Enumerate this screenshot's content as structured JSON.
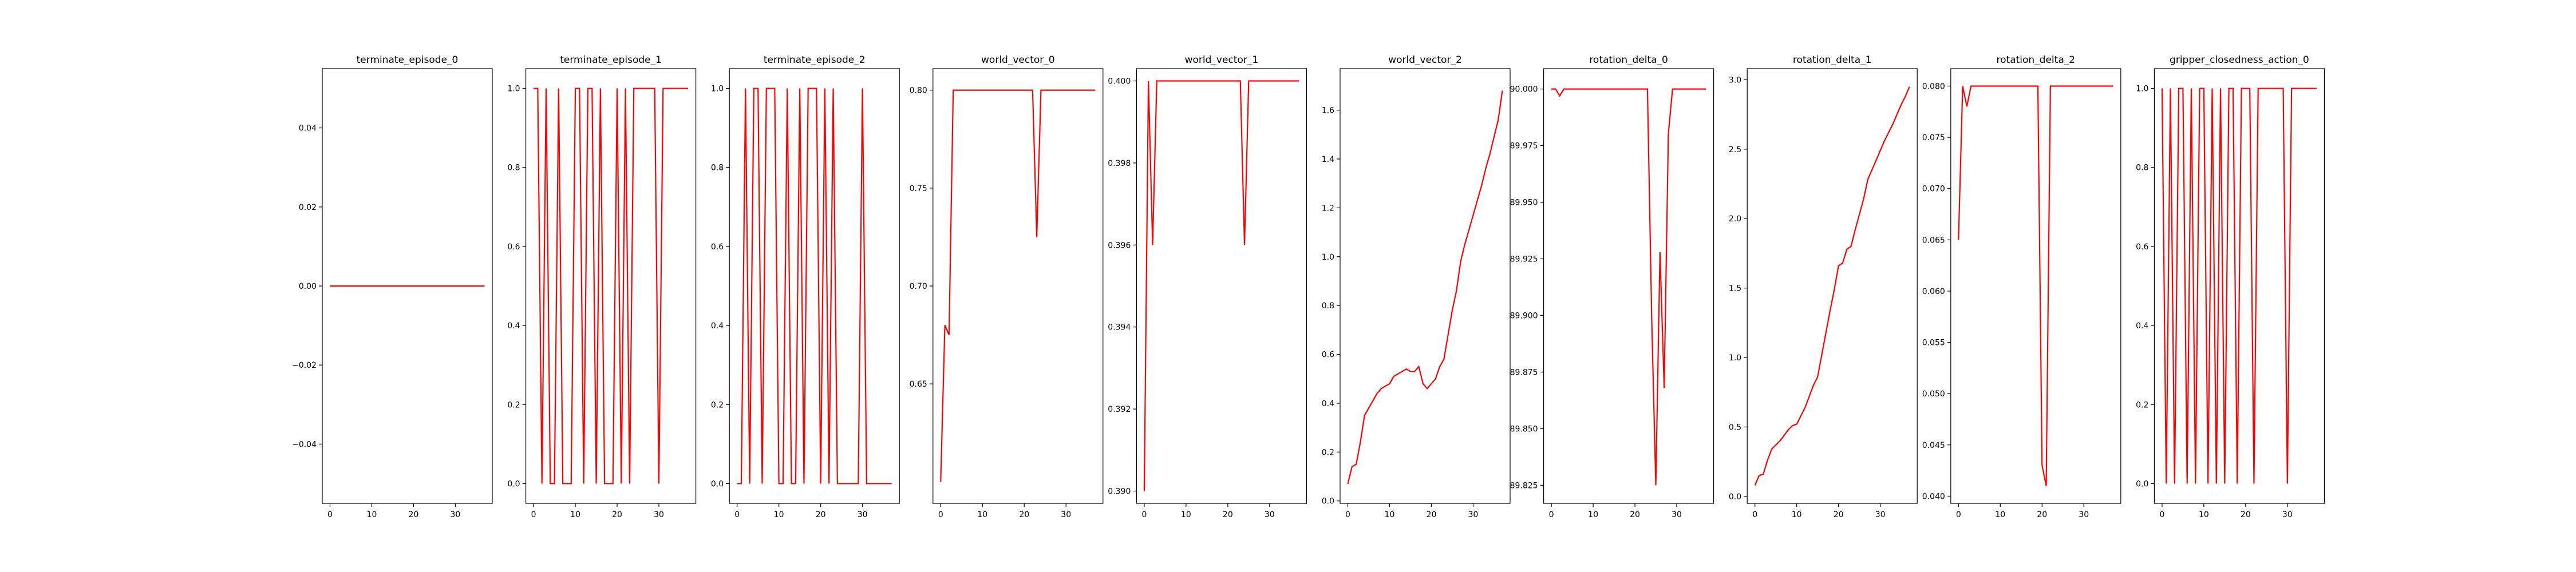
{
  "figure": {
    "line_color": "#ff0000",
    "axes_color": "#000000",
    "background": "#ffffff"
  },
  "chart_data": [
    {
      "type": "line",
      "title": "terminate_episode_0",
      "xlim": [
        -1.85,
        38.85
      ],
      "ylim": [
        -0.055,
        0.055
      ],
      "xticks": [
        0,
        10,
        20,
        30
      ],
      "yticks": [
        -0.04,
        -0.02,
        0.0,
        0.02,
        0.04
      ],
      "ytick_labels": [
        "−0.04",
        "−0.02",
        "0.00",
        "0.02",
        "0.04"
      ],
      "grid": false,
      "x": [
        0,
        37
      ],
      "y": [
        0,
        0
      ]
    },
    {
      "type": "line",
      "title": "terminate_episode_1",
      "xlim": [
        -1.85,
        38.85
      ],
      "ylim": [
        -0.05,
        1.05
      ],
      "xticks": [
        0,
        10,
        20,
        30
      ],
      "yticks": [
        0.0,
        0.2,
        0.4,
        0.6,
        0.8,
        1.0
      ],
      "ytick_labels": [
        "0.0",
        "0.2",
        "0.4",
        "0.6",
        "0.8",
        "1.0"
      ],
      "grid": false,
      "x": [
        0,
        1,
        2,
        3,
        4,
        5,
        6,
        7,
        8,
        9,
        10,
        11,
        12,
        13,
        14,
        15,
        16,
        17,
        18,
        19,
        20,
        21,
        22,
        23,
        24,
        25,
        26,
        27,
        28,
        29,
        30,
        31,
        32,
        33,
        34,
        35,
        36,
        37
      ],
      "y": [
        1,
        1,
        0,
        1,
        0,
        0,
        1,
        0,
        0,
        0,
        1,
        1,
        0,
        1,
        1,
        0,
        1,
        0,
        0,
        0,
        1,
        0,
        1,
        0,
        1,
        1,
        1,
        1,
        1,
        1,
        0,
        1,
        1,
        1,
        1,
        1,
        1,
        1
      ]
    },
    {
      "type": "line",
      "title": "terminate_episode_2",
      "xlim": [
        -1.85,
        38.85
      ],
      "ylim": [
        -0.05,
        1.05
      ],
      "xticks": [
        0,
        10,
        20,
        30
      ],
      "yticks": [
        0.0,
        0.2,
        0.4,
        0.6,
        0.8,
        1.0
      ],
      "ytick_labels": [
        "0.0",
        "0.2",
        "0.4",
        "0.6",
        "0.8",
        "1.0"
      ],
      "grid": false,
      "x": [
        0,
        1,
        2,
        3,
        4,
        5,
        6,
        7,
        8,
        9,
        10,
        11,
        12,
        13,
        14,
        15,
        16,
        17,
        18,
        19,
        20,
        21,
        22,
        23,
        24,
        25,
        26,
        27,
        28,
        29,
        30,
        31,
        32,
        33,
        34,
        35,
        36,
        37
      ],
      "y": [
        0,
        0,
        1,
        0,
        1,
        1,
        0,
        1,
        1,
        1,
        0,
        0,
        1,
        0,
        0,
        1,
        0,
        1,
        1,
        1,
        0,
        1,
        0,
        1,
        0,
        0,
        0,
        0,
        0,
        0,
        1,
        0,
        0,
        0,
        0,
        0,
        0,
        0
      ]
    },
    {
      "type": "line",
      "title": "world_vector_0",
      "xlim": [
        -1.85,
        38.85
      ],
      "ylim": [
        0.589,
        0.811
      ],
      "xticks": [
        0,
        10,
        20,
        30
      ],
      "yticks": [
        0.65,
        0.7,
        0.75,
        0.8
      ],
      "ytick_labels": [
        "0.65",
        "0.70",
        "0.75",
        "0.80"
      ],
      "grid": false,
      "x": [
        0,
        1,
        2,
        3,
        4,
        5,
        6,
        7,
        8,
        9,
        10,
        11,
        12,
        13,
        14,
        15,
        16,
        17,
        18,
        19,
        20,
        21,
        22,
        23,
        24,
        25,
        26,
        27,
        28,
        29,
        30,
        31,
        32,
        33,
        34,
        35,
        36,
        37
      ],
      "y": [
        0.6,
        0.68,
        0.675,
        0.8,
        0.8,
        0.8,
        0.8,
        0.8,
        0.8,
        0.8,
        0.8,
        0.8,
        0.8,
        0.8,
        0.8,
        0.8,
        0.8,
        0.8,
        0.8,
        0.8,
        0.8,
        0.8,
        0.8,
        0.725,
        0.8,
        0.8,
        0.8,
        0.8,
        0.8,
        0.8,
        0.8,
        0.8,
        0.8,
        0.8,
        0.8,
        0.8,
        0.8,
        0.8
      ]
    },
    {
      "type": "line",
      "title": "world_vector_1",
      "xlim": [
        -1.85,
        38.85
      ],
      "ylim": [
        0.3897,
        0.4003
      ],
      "xticks": [
        0,
        10,
        20,
        30
      ],
      "yticks": [
        0.39,
        0.392,
        0.394,
        0.396,
        0.398,
        0.4
      ],
      "ytick_labels": [
        "0.390",
        "0.392",
        "0.394",
        "0.396",
        "0.398",
        "0.400"
      ],
      "grid": false,
      "x": [
        0,
        1,
        2,
        3,
        4,
        5,
        6,
        7,
        8,
        9,
        10,
        11,
        12,
        13,
        14,
        15,
        16,
        17,
        18,
        19,
        20,
        21,
        22,
        23,
        24,
        25,
        26,
        27,
        28,
        29,
        30,
        31,
        32,
        33,
        34,
        35,
        36,
        37
      ],
      "y": [
        0.39,
        0.4,
        0.396,
        0.4,
        0.4,
        0.4,
        0.4,
        0.4,
        0.4,
        0.4,
        0.4,
        0.4,
        0.4,
        0.4,
        0.4,
        0.4,
        0.4,
        0.4,
        0.4,
        0.4,
        0.4,
        0.4,
        0.4,
        0.4,
        0.396,
        0.4,
        0.4,
        0.4,
        0.4,
        0.4,
        0.4,
        0.4,
        0.4,
        0.4,
        0.4,
        0.4,
        0.4,
        0.4
      ]
    },
    {
      "type": "line",
      "title": "world_vector_2",
      "xlim": [
        -1.85,
        38.85
      ],
      "ylim": [
        -0.01,
        1.77
      ],
      "xticks": [
        0,
        10,
        20,
        30
      ],
      "yticks": [
        0.0,
        0.2,
        0.4,
        0.6,
        0.8,
        1.0,
        1.2,
        1.4,
        1.6
      ],
      "ytick_labels": [
        "0.0",
        "0.2",
        "0.4",
        "0.6",
        "0.8",
        "1.0",
        "1.2",
        "1.4",
        "1.6"
      ],
      "grid": false,
      "x": [
        0,
        1,
        2,
        3,
        4,
        5,
        6,
        7,
        8,
        9,
        10,
        11,
        12,
        13,
        14,
        15,
        16,
        17,
        18,
        19,
        20,
        21,
        22,
        23,
        24,
        25,
        26,
        27,
        28,
        29,
        30,
        31,
        32,
        33,
        34,
        35,
        36,
        37
      ],
      "y": [
        0.07,
        0.14,
        0.15,
        0.24,
        0.35,
        0.38,
        0.41,
        0.44,
        0.46,
        0.47,
        0.48,
        0.51,
        0.52,
        0.53,
        0.54,
        0.53,
        0.53,
        0.55,
        0.48,
        0.46,
        0.48,
        0.5,
        0.55,
        0.58,
        0.68,
        0.78,
        0.86,
        0.98,
        1.05,
        1.11,
        1.17,
        1.23,
        1.29,
        1.36,
        1.42,
        1.49,
        1.56,
        1.68
      ]
    },
    {
      "type": "line",
      "title": "rotation_delta_0",
      "xlim": [
        -1.85,
        38.85
      ],
      "ylim": [
        89.817,
        90.009
      ],
      "xticks": [
        0,
        10,
        20,
        30
      ],
      "yticks": [
        89.825,
        89.85,
        89.875,
        89.9,
        89.925,
        89.95,
        89.975,
        90.0
      ],
      "ytick_labels": [
        "89.825",
        "89.850",
        "89.875",
        "89.900",
        "89.925",
        "89.950",
        "89.975",
        "90.000"
      ],
      "grid": false,
      "x": [
        0,
        1,
        2,
        3,
        4,
        5,
        6,
        7,
        8,
        9,
        10,
        11,
        12,
        13,
        14,
        15,
        16,
        17,
        18,
        19,
        20,
        21,
        22,
        23,
        24,
        25,
        26,
        27,
        28,
        29,
        30,
        31,
        32,
        33,
        34,
        35,
        36,
        37
      ],
      "y": [
        90.0,
        90.0,
        89.997,
        90.0,
        90.0,
        90.0,
        90.0,
        90.0,
        90.0,
        90.0,
        90.0,
        90.0,
        90.0,
        90.0,
        90.0,
        90.0,
        90.0,
        90.0,
        90.0,
        90.0,
        90.0,
        90.0,
        90.0,
        90.0,
        89.9,
        89.825,
        89.928,
        89.868,
        89.98,
        90.0,
        90.0,
        90.0,
        90.0,
        90.0,
        90.0,
        90.0,
        90.0,
        90.0
      ]
    },
    {
      "type": "line",
      "title": "rotation_delta_1",
      "xlim": [
        -1.85,
        38.85
      ],
      "ylim": [
        -0.05,
        3.08
      ],
      "xticks": [
        0,
        10,
        20,
        30
      ],
      "yticks": [
        0.0,
        0.5,
        1.0,
        1.5,
        2.0,
        2.5,
        3.0
      ],
      "ytick_labels": [
        "0.0",
        "0.5",
        "1.0",
        "1.5",
        "2.0",
        "2.5",
        "3.0"
      ],
      "grid": false,
      "x": [
        0,
        1,
        2,
        3,
        4,
        5,
        6,
        7,
        8,
        9,
        10,
        11,
        12,
        13,
        14,
        15,
        16,
        17,
        18,
        19,
        20,
        21,
        22,
        23,
        24,
        25,
        26,
        27,
        28,
        29,
        30,
        31,
        32,
        33,
        34,
        35,
        36,
        37
      ],
      "y": [
        0.08,
        0.15,
        0.16,
        0.26,
        0.34,
        0.37,
        0.4,
        0.44,
        0.48,
        0.51,
        0.52,
        0.58,
        0.64,
        0.72,
        0.8,
        0.86,
        1.02,
        1.18,
        1.34,
        1.49,
        1.66,
        1.68,
        1.78,
        1.8,
        1.92,
        2.03,
        2.14,
        2.28,
        2.35,
        2.42,
        2.49,
        2.56,
        2.62,
        2.68,
        2.75,
        2.82,
        2.88,
        2.95
      ]
    },
    {
      "type": "line",
      "title": "rotation_delta_2",
      "xlim": [
        -1.85,
        38.85
      ],
      "ylim": [
        0.0393,
        0.0817
      ],
      "xticks": [
        0,
        10,
        20,
        30
      ],
      "yticks": [
        0.04,
        0.045,
        0.05,
        0.055,
        0.06,
        0.065,
        0.07,
        0.075,
        0.08
      ],
      "ytick_labels": [
        "0.040",
        "0.045",
        "0.050",
        "0.055",
        "0.060",
        "0.065",
        "0.070",
        "0.075",
        "0.080"
      ],
      "grid": false,
      "x": [
        0,
        1,
        2,
        3,
        4,
        5,
        6,
        7,
        8,
        9,
        10,
        11,
        12,
        13,
        14,
        15,
        16,
        17,
        18,
        19,
        20,
        21,
        22,
        23,
        24,
        25,
        26,
        27,
        28,
        29,
        30,
        31,
        32,
        33,
        34,
        35,
        36,
        37
      ],
      "y": [
        0.065,
        0.08,
        0.078,
        0.08,
        0.08,
        0.08,
        0.08,
        0.08,
        0.08,
        0.08,
        0.08,
        0.08,
        0.08,
        0.08,
        0.08,
        0.08,
        0.08,
        0.08,
        0.08,
        0.08,
        0.043,
        0.041,
        0.08,
        0.08,
        0.08,
        0.08,
        0.08,
        0.08,
        0.08,
        0.08,
        0.08,
        0.08,
        0.08,
        0.08,
        0.08,
        0.08,
        0.08,
        0.08
      ]
    },
    {
      "type": "line",
      "title": "gripper_closedness_action_0",
      "xlim": [
        -1.85,
        38.85
      ],
      "ylim": [
        -0.05,
        1.05
      ],
      "xticks": [
        0,
        10,
        20,
        30
      ],
      "yticks": [
        0.0,
        0.2,
        0.4,
        0.6,
        0.8,
        1.0
      ],
      "ytick_labels": [
        "0.0",
        "0.2",
        "0.4",
        "0.6",
        "0.8",
        "1.0"
      ],
      "grid": false,
      "x": [
        0,
        1,
        2,
        3,
        4,
        5,
        6,
        7,
        8,
        9,
        10,
        11,
        12,
        13,
        14,
        15,
        16,
        17,
        18,
        19,
        20,
        21,
        22,
        23,
        24,
        25,
        26,
        27,
        28,
        29,
        30,
        31,
        32,
        33,
        34,
        35,
        36,
        37
      ],
      "y": [
        1,
        0,
        1,
        0,
        1,
        1,
        0,
        1,
        0,
        1,
        1,
        0,
        1,
        0,
        1,
        0,
        1,
        1,
        0,
        1,
        1,
        1,
        0,
        1,
        1,
        1,
        1,
        1,
        1,
        1,
        0,
        1,
        1,
        1,
        1,
        1,
        1,
        1
      ]
    }
  ]
}
